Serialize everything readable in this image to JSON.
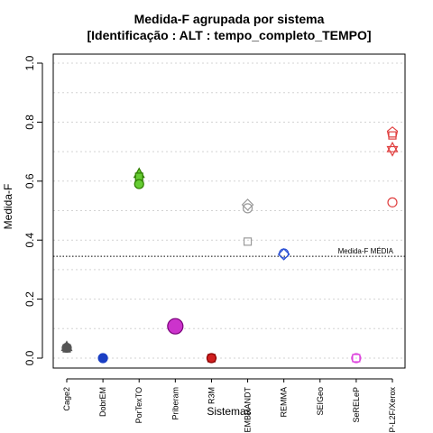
{
  "chart_data": {
    "type": "scatter",
    "title": "Medida-F agrupada por sistema",
    "subtitle": "[Identificação : ALT : tempo_completo_TEMPO]",
    "xlabel": "Sistemas",
    "ylabel": "Medida-F",
    "ylim": [
      0,
      1
    ],
    "yticks": [
      "0.0",
      "0.2",
      "0.4",
      "0.6",
      "0.8",
      "1.0"
    ],
    "categories": [
      "Cage2",
      "DobrEM",
      "PorTexTO",
      "Priberam",
      "R3M",
      "REMBRANDT",
      "REMMA",
      "SEIGeo",
      "SeRELeP",
      "XIP-L2F/Xerox"
    ],
    "grid": true,
    "reference_line": {
      "value": 0.345,
      "label": "Medida-F MÉDIA"
    },
    "points": [
      {
        "category": "Cage2",
        "y": 0.035,
        "shape": "circle",
        "color": "#555555",
        "fill": "#555555"
      },
      {
        "category": "Cage2",
        "y": 0.038,
        "shape": "triangle",
        "color": "#555555",
        "fill": "#555555"
      },
      {
        "category": "Cage2",
        "y": 0.033,
        "shape": "square",
        "color": "#555555",
        "fill": "#555555"
      },
      {
        "category": "DobrEM",
        "y": 0.0,
        "shape": "circle",
        "color": "#1a3fc4",
        "fill": "#1a3fc4"
      },
      {
        "category": "PorTexTO",
        "y": 0.625,
        "shape": "triangle",
        "color": "#2e7d00",
        "fill": "#66cc33"
      },
      {
        "category": "PorTexTO",
        "y": 0.615,
        "shape": "square",
        "color": "#2e7d00",
        "fill": "#66cc33"
      },
      {
        "category": "PorTexTO",
        "y": 0.59,
        "shape": "circle",
        "color": "#2e7d00",
        "fill": "#66cc33"
      },
      {
        "category": "Priberam",
        "y": 0.108,
        "shape": "circle-large",
        "color": "#7a007a",
        "fill": "#cc33cc"
      },
      {
        "category": "R3M",
        "y": 0.0,
        "shape": "square",
        "color": "#8b0000",
        "fill": "#d02020"
      },
      {
        "category": "R3M",
        "y": 0.0,
        "shape": "circle",
        "color": "#8b0000",
        "fill": "#d02020"
      },
      {
        "category": "REMBRANDT",
        "y": 0.52,
        "shape": "diamond",
        "color": "#9a9a9a",
        "fill": "none"
      },
      {
        "category": "REMBRANDT",
        "y": 0.508,
        "shape": "circle",
        "color": "#9a9a9a",
        "fill": "none"
      },
      {
        "category": "REMBRANDT",
        "y": 0.395,
        "shape": "square",
        "color": "#9a9a9a",
        "fill": "none"
      },
      {
        "category": "REMMA",
        "y": 0.352,
        "shape": "diamond",
        "color": "#2a4fd4",
        "fill": "none"
      },
      {
        "category": "REMMA",
        "y": 0.355,
        "shape": "circle",
        "color": "#2a4fd4",
        "fill": "none"
      },
      {
        "category": "SeRELeP",
        "y": 0.0,
        "shape": "square",
        "color": "#dd44dd",
        "fill": "none"
      },
      {
        "category": "SeRELeP",
        "y": 0.0,
        "shape": "circle",
        "color": "#dd44dd",
        "fill": "none"
      },
      {
        "category": "XIP-L2F/Xerox",
        "y": 0.765,
        "shape": "pentagon",
        "color": "#e04040",
        "fill": "none"
      },
      {
        "category": "XIP-L2F/Xerox",
        "y": 0.755,
        "shape": "square",
        "color": "#e04040",
        "fill": "none"
      },
      {
        "category": "XIP-L2F/Xerox",
        "y": 0.712,
        "shape": "triangle",
        "color": "#e04040",
        "fill": "none"
      },
      {
        "category": "XIP-L2F/Xerox",
        "y": 0.705,
        "shape": "triangle-down",
        "color": "#e04040",
        "fill": "none"
      },
      {
        "category": "XIP-L2F/Xerox",
        "y": 0.528,
        "shape": "circle",
        "color": "#e04040",
        "fill": "none"
      }
    ]
  }
}
